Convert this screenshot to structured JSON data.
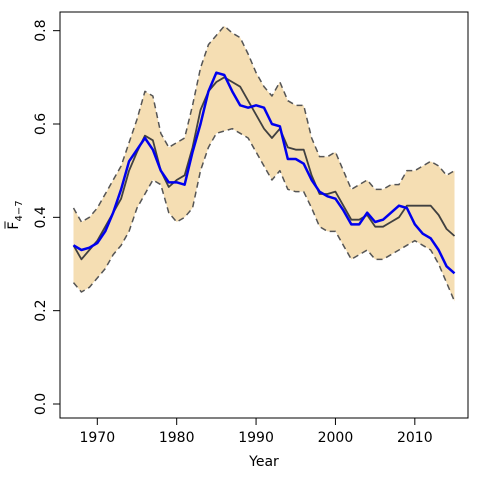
{
  "chart_data": {
    "type": "line",
    "xlabel": "Year",
    "ylabel": "F̅",
    "ylabel_subscript": "4−7",
    "xlim": [
      1965.3,
      2016.7
    ],
    "ylim": [
      -0.03,
      0.84
    ],
    "x_ticks": [
      1970,
      1980,
      1990,
      2000,
      2010
    ],
    "x_tick_labels": [
      "1970",
      "1980",
      "1990",
      "2000",
      "2010"
    ],
    "y_ticks": [
      0.0,
      0.2,
      0.4,
      0.6,
      0.8
    ],
    "y_tick_labels": [
      "0.0",
      "0.2",
      "0.4",
      "0.6",
      "0.8"
    ],
    "grid": false,
    "x": [
      1967,
      1968,
      1969,
      1970,
      1971,
      1972,
      1973,
      1974,
      1975,
      1976,
      1977,
      1978,
      1979,
      1980,
      1981,
      1982,
      1983,
      1984,
      1985,
      1986,
      1987,
      1988,
      1989,
      1990,
      1991,
      1992,
      1993,
      1994,
      1995,
      1996,
      1997,
      1998,
      1999,
      2000,
      2001,
      2002,
      2003,
      2004,
      2005,
      2006,
      2007,
      2008,
      2009,
      2010,
      2011,
      2012,
      2013,
      2014,
      2015
    ],
    "series": [
      {
        "role": "band-upper",
        "color": "#555555",
        "dashed": true,
        "values": [
          0.42,
          0.39,
          0.4,
          0.42,
          0.45,
          0.48,
          0.51,
          0.56,
          0.61,
          0.67,
          0.66,
          0.58,
          0.55,
          0.56,
          0.57,
          0.64,
          0.72,
          0.77,
          0.79,
          0.81,
          0.795,
          0.785,
          0.75,
          0.71,
          0.68,
          0.66,
          0.69,
          0.65,
          0.64,
          0.64,
          0.57,
          0.53,
          0.53,
          0.54,
          0.5,
          0.46,
          0.47,
          0.48,
          0.46,
          0.46,
          0.47,
          0.47,
          0.5,
          0.5,
          0.51,
          0.52,
          0.51,
          0.49,
          0.5
        ]
      },
      {
        "role": "band-lower",
        "color": "#555555",
        "dashed": true,
        "values": [
          0.26,
          0.24,
          0.25,
          0.27,
          0.29,
          0.32,
          0.34,
          0.37,
          0.42,
          0.45,
          0.48,
          0.47,
          0.41,
          0.39,
          0.4,
          0.42,
          0.5,
          0.55,
          0.58,
          0.585,
          0.59,
          0.58,
          0.57,
          0.54,
          0.51,
          0.48,
          0.5,
          0.46,
          0.455,
          0.455,
          0.42,
          0.38,
          0.37,
          0.37,
          0.34,
          0.31,
          0.32,
          0.33,
          0.31,
          0.31,
          0.32,
          0.33,
          0.34,
          0.35,
          0.34,
          0.33,
          0.3,
          0.26,
          0.22
        ]
      },
      {
        "role": "estimate",
        "color": "#404040",
        "values": [
          0.34,
          0.31,
          0.33,
          0.35,
          0.38,
          0.41,
          0.44,
          0.5,
          0.54,
          0.575,
          0.565,
          0.5,
          0.465,
          0.48,
          0.49,
          0.55,
          0.63,
          0.67,
          0.69,
          0.7,
          0.69,
          0.68,
          0.65,
          0.62,
          0.59,
          0.57,
          0.59,
          0.55,
          0.545,
          0.545,
          0.49,
          0.45,
          0.45,
          0.455,
          0.425,
          0.395,
          0.395,
          0.405,
          0.38,
          0.38,
          0.39,
          0.4,
          0.425,
          0.425,
          0.425,
          0.425,
          0.405,
          0.375,
          0.36
        ]
      },
      {
        "role": "highlight",
        "color": "#0000ee",
        "values": [
          0.34,
          0.33,
          0.335,
          0.345,
          0.37,
          0.41,
          0.46,
          0.52,
          0.545,
          0.57,
          0.545,
          0.5,
          0.475,
          0.475,
          0.47,
          0.54,
          0.6,
          0.67,
          0.71,
          0.705,
          0.67,
          0.64,
          0.635,
          0.64,
          0.635,
          0.6,
          0.595,
          0.525,
          0.525,
          0.515,
          0.48,
          0.455,
          0.445,
          0.44,
          0.415,
          0.385,
          0.385,
          0.41,
          0.39,
          0.395,
          0.41,
          0.425,
          0.42,
          0.385,
          0.365,
          0.355,
          0.33,
          0.295,
          0.28
        ]
      }
    ],
    "band_fill": "#f5deb3",
    "axis_color": "#000000"
  }
}
